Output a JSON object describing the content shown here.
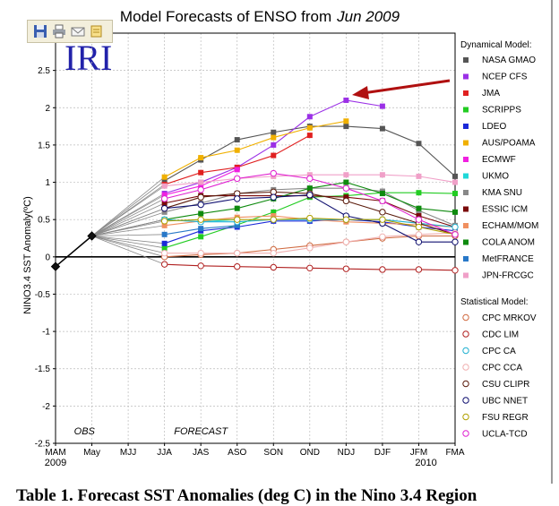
{
  "chart_data": {
    "type": "line",
    "title": "Model Forecasts of ENSO from",
    "title_italic": "Jun 2009",
    "logo": "IRI",
    "ylabel": "NINO3.4 SST Anomaly(ºC)",
    "ylim": [
      -2.5,
      3.0
    ],
    "yticks": [
      "-2.5",
      "-2",
      "-1.5",
      "-1",
      "-0.5",
      "0",
      "0.5",
      "1",
      "1.5",
      "2",
      "2.5"
    ],
    "categories": [
      "MAM",
      "May",
      "MJJ",
      "JJA",
      "JAS",
      "ASO",
      "SON",
      "OND",
      "NDJ",
      "DJF",
      "JFM",
      "FMA"
    ],
    "year_labels": [
      {
        "text": "2009",
        "at": 0
      },
      {
        "text": "2010",
        "at": 10.2
      }
    ],
    "annotations": {
      "obs": "OBS",
      "forecast": "FORECAST"
    },
    "observed": [
      -0.13,
      0.28
    ],
    "legend_dynamical_title": "Dynamical Model:",
    "legend_statistical_title": "Statistical Model:",
    "series": [
      {
        "name": "NASA GMAO",
        "group": "dyn",
        "color": "#555555",
        "marker": "square",
        "values": [
          null,
          0.28,
          null,
          1.02,
          1.3,
          1.57,
          1.67,
          1.75,
          1.75,
          1.72,
          1.52,
          1.08
        ]
      },
      {
        "name": "NCEP CFS",
        "group": "dyn",
        "color": "#9b30e6",
        "marker": "square",
        "values": [
          null,
          0.28,
          null,
          0.85,
          1.0,
          1.2,
          1.5,
          1.88,
          2.1,
          2.02,
          null,
          null
        ]
      },
      {
        "name": "JMA",
        "group": "dyn",
        "color": "#e02020",
        "marker": "square",
        "values": [
          null,
          0.28,
          null,
          0.97,
          1.13,
          1.2,
          1.36,
          1.63,
          null,
          null,
          null,
          null
        ]
      },
      {
        "name": "SCRIPPS",
        "group": "dyn",
        "color": "#22cc22",
        "marker": "square",
        "values": [
          null,
          0.28,
          null,
          0.12,
          0.27,
          0.43,
          0.6,
          0.8,
          0.82,
          0.86,
          0.86,
          0.85
        ]
      },
      {
        "name": "LDEO",
        "group": "dyn",
        "color": "#1a28d8",
        "marker": "square",
        "values": [
          null,
          0.28,
          null,
          0.18,
          0.35,
          0.4,
          0.48,
          0.48,
          0.5,
          0.47,
          0.4,
          0.35
        ]
      },
      {
        "name": "AUS/POAMA",
        "group": "dyn",
        "color": "#f0b000",
        "marker": "square",
        "values": [
          null,
          0.28,
          null,
          1.07,
          1.33,
          1.43,
          1.6,
          1.73,
          1.82,
          null,
          null,
          null
        ]
      },
      {
        "name": "ECMWF",
        "group": "dyn",
        "color": "#f020e0",
        "marker": "square",
        "values": [
          null,
          0.28,
          null,
          0.83,
          0.95,
          1.17,
          null,
          null,
          null,
          null,
          null,
          null
        ]
      },
      {
        "name": "UKMO",
        "group": "dyn",
        "color": "#20d8d8",
        "marker": "square",
        "values": [
          null,
          0.28,
          null,
          0.5,
          0.47,
          0.5,
          null,
          null,
          null,
          null,
          null,
          null
        ]
      },
      {
        "name": "KMA SNU",
        "group": "dyn",
        "color": "#888888",
        "marker": "square",
        "values": [
          null,
          0.28,
          null,
          0.6,
          0.72,
          0.85,
          0.9,
          0.92,
          0.92,
          0.88,
          0.62,
          0.42
        ]
      },
      {
        "name": "ESSIC ICM",
        "group": "dyn",
        "color": "#7a0a0a",
        "marker": "square",
        "values": [
          null,
          0.28,
          null,
          0.72,
          0.82,
          0.82,
          0.82,
          0.82,
          0.8,
          0.75,
          0.55,
          0.4
        ]
      },
      {
        "name": "ECHAM/MOM",
        "group": "dyn",
        "color": "#f09060",
        "marker": "square",
        "values": [
          null,
          0.28,
          null,
          0.42,
          0.48,
          0.53,
          0.55,
          0.5,
          0.47,
          0.45,
          0.43,
          0.4
        ]
      },
      {
        "name": "COLA ANOM",
        "group": "dyn",
        "color": "#0e8a0e",
        "marker": "square",
        "values": [
          null,
          0.28,
          null,
          0.5,
          0.58,
          0.65,
          0.78,
          0.92,
          1.0,
          0.85,
          0.65,
          0.6
        ]
      },
      {
        "name": "MetFRANCE",
        "group": "dyn",
        "color": "#2878c8",
        "marker": "square",
        "values": [
          null,
          0.28,
          null,
          0.3,
          0.38,
          0.42,
          null,
          null,
          null,
          null,
          null,
          null
        ]
      },
      {
        "name": "JPN-FRCGC",
        "group": "dyn",
        "color": "#f0a0c8",
        "marker": "square",
        "values": [
          null,
          0.28,
          null,
          0.95,
          1.0,
          1.05,
          1.08,
          1.1,
          1.1,
          1.1,
          1.08,
          1.0
        ]
      },
      {
        "name": "CPC MRKOV",
        "group": "stat",
        "color": "#d06a40",
        "marker": "circle",
        "values": [
          null,
          0.28,
          null,
          0.0,
          0.03,
          0.05,
          0.1,
          0.15,
          0.2,
          0.25,
          0.28,
          0.28
        ]
      },
      {
        "name": "CDC LIM",
        "group": "stat",
        "color": "#b02020",
        "marker": "circle",
        "values": [
          null,
          0.28,
          null,
          -0.1,
          -0.12,
          -0.13,
          -0.14,
          -0.15,
          -0.16,
          -0.17,
          -0.17,
          -0.18
        ]
      },
      {
        "name": "CPC CA",
        "group": "stat",
        "color": "#20b0d0",
        "marker": "circle",
        "values": [
          null,
          0.28,
          null,
          0.5,
          0.47,
          0.47,
          0.5,
          0.5,
          0.5,
          0.5,
          0.45,
          0.4
        ]
      },
      {
        "name": "CPC CCA",
        "group": "stat",
        "color": "#f0b0b0",
        "marker": "circle",
        "values": [
          null,
          0.28,
          null,
          0.05,
          0.05,
          0.05,
          0.05,
          0.12,
          0.2,
          0.27,
          0.3,
          0.32
        ]
      },
      {
        "name": "CSU CLIPR",
        "group": "stat",
        "color": "#5a1a0a",
        "marker": "circle",
        "values": [
          null,
          0.28,
          null,
          0.65,
          0.8,
          0.85,
          0.87,
          0.85,
          0.75,
          0.6,
          0.45,
          0.3
        ]
      },
      {
        "name": "UBC NNET",
        "group": "stat",
        "color": "#101070",
        "marker": "circle",
        "values": [
          null,
          0.28,
          null,
          0.65,
          0.7,
          0.78,
          0.8,
          0.83,
          0.55,
          0.45,
          0.2,
          0.2
        ]
      },
      {
        "name": "FSU REGR",
        "group": "stat",
        "color": "#b0a000",
        "marker": "circle",
        "values": [
          null,
          0.28,
          null,
          0.48,
          0.5,
          0.5,
          0.5,
          0.52,
          0.5,
          0.5,
          0.4,
          0.3
        ]
      },
      {
        "name": "UCLA-TCD",
        "group": "stat",
        "color": "#e020d0",
        "marker": "circle",
        "values": [
          null,
          0.28,
          null,
          0.78,
          0.9,
          1.05,
          1.12,
          1.05,
          0.92,
          0.75,
          0.5,
          0.3
        ]
      }
    ]
  },
  "caption": "Table 1. Forecast SST Anomalies (deg C) in the Nino 3.4 Region",
  "toolbar": {
    "icons": [
      "save-icon",
      "print-icon",
      "email-icon",
      "edit-icon"
    ]
  }
}
